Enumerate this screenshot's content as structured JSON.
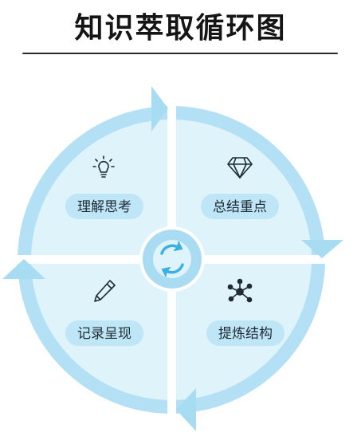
{
  "title": "知识萃取循环图",
  "colors": {
    "ring": "#b3e0f5",
    "arrow": "#a8dcf3",
    "inner_fill": "#dff3fb",
    "pill_fill": "#bfe6f7",
    "hub_ring": "#a9dcf2",
    "hub_icon": "#3db0e3",
    "text": "#1f2a33"
  },
  "quadrants": [
    {
      "label": "理解思考",
      "icon": "lightbulb-icon"
    },
    {
      "label": "总结重点",
      "icon": "diamond-icon"
    },
    {
      "label": "提炼结构",
      "icon": "network-icon"
    },
    {
      "label": "记录呈现",
      "icon": "pencil-icon"
    }
  ],
  "center_icon": "cycle-arrows-icon"
}
